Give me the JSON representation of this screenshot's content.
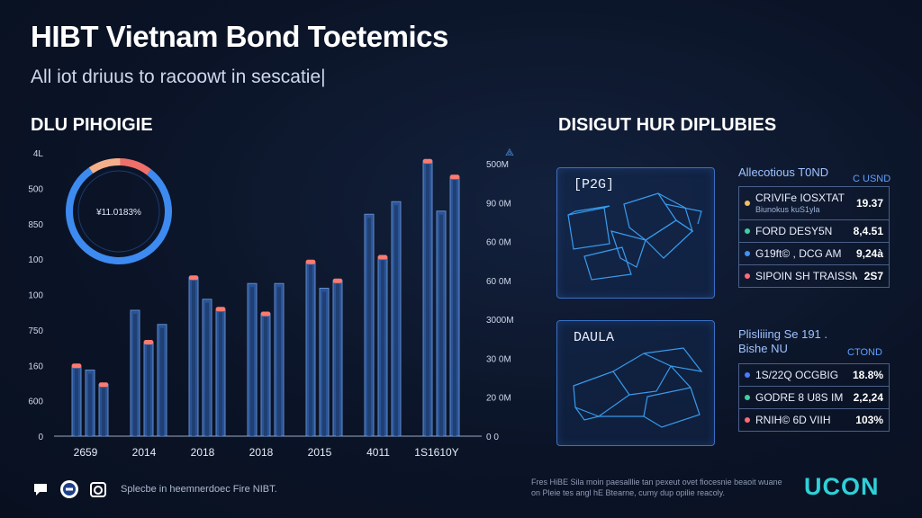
{
  "header": {
    "title": "HIBT Vietnam Bond Toetemics",
    "subtitle": "All iot driuus to racoowt in sescatie|"
  },
  "left_section_title": "DLU PIHOIGIE",
  "right_section_title": "DISIGUT HUR DIPLUBIES",
  "colors": {
    "background": "#0b1427",
    "bar_fill": "#2f5ea8",
    "bar_edge": "#6f9fe6",
    "bar_cap": "#ff7a6e",
    "donut_main": "#3d8bf0",
    "donut_peach": "#f3b08a",
    "donut_coral": "#ef6f6a",
    "panel_border": "#3a6fc4",
    "brand": "#2fd0d8"
  },
  "chart_data": {
    "type": "bar",
    "categories": [
      "2659",
      "2014",
      "2018",
      "2018",
      "2015",
      "4011",
      "1S1610Y"
    ],
    "series": [
      {
        "name": "series-1",
        "values": [
          225,
          400,
          505,
          485,
          555,
          705,
          875
        ]
      },
      {
        "name": "series-2",
        "values": [
          210,
          300,
          435,
          390,
          470,
          570,
          715
        ]
      },
      {
        "name": "series-3",
        "values": [
          165,
          355,
          405,
          485,
          495,
          745,
          825
        ]
      }
    ],
    "y_left_ticks": [
      "0",
      "600",
      "160",
      "750",
      "100",
      "100",
      "850",
      "500",
      "4L"
    ],
    "y_right_ticks": [
      "0 0",
      "20 0M",
      "30 0M",
      "3000M",
      "60 0M",
      "60 0M",
      "90 0M",
      "500M"
    ],
    "ylim": [
      0,
      900
    ],
    "donut": {
      "center_label": "¥11.0183%",
      "segments": [
        {
          "name": "main",
          "value": 80,
          "color": "#3d8bf0"
        },
        {
          "name": "peach",
          "value": 10,
          "color": "#f3b08a"
        },
        {
          "name": "coral",
          "value": 10,
          "color": "#ef6f6a"
        }
      ]
    }
  },
  "panels": [
    {
      "label": "[P2G]",
      "table_title": "Allecotious T0ND",
      "unit": "C USND",
      "rows": [
        {
          "name": "CRIVIFe IOSXTAT",
          "sub": "Biunokus kuS1yla",
          "value": "19.37",
          "color": "#f0c060"
        },
        {
          "name": "FORD DESY5N",
          "value": "8,4.51",
          "color": "#40d0a0"
        },
        {
          "name": "G19ft© , DCG AM",
          "value": "9,24à",
          "color": "#4090ff"
        },
        {
          "name": "SIPOIN SH TRAISSM",
          "value": "2S7",
          "color": "#ff6a7a"
        }
      ]
    },
    {
      "label": "DAULA",
      "table_title": "Plisliiing Se 191 .",
      "table_title2": "Bishe NU",
      "unit": "CTOND",
      "rows": [
        {
          "name": "1S/22Q OCGBIG",
          "value": "18.8%",
          "color": "#4a7bff"
        },
        {
          "name": "GODRE 8 U8S IM",
          "value": "2,2,24",
          "color": "#40d0a0"
        },
        {
          "name": "RNIH© 6D VIIH",
          "value": "103%",
          "color": "#ff6a7a"
        }
      ]
    }
  ],
  "footer": {
    "icons": [
      "chat-icon",
      "badge-icon",
      "camera-icon"
    ],
    "text": "Splecbe in heemnerdoec Fire NIBT.",
    "footnote": "Fres HiBE Sila moin paesalllie tan pexeut ovet fiocesnie beaoit wuane on Pleie tes angl hE Btearne, cumy dup opilie reacoly.",
    "brand": "UCON"
  }
}
